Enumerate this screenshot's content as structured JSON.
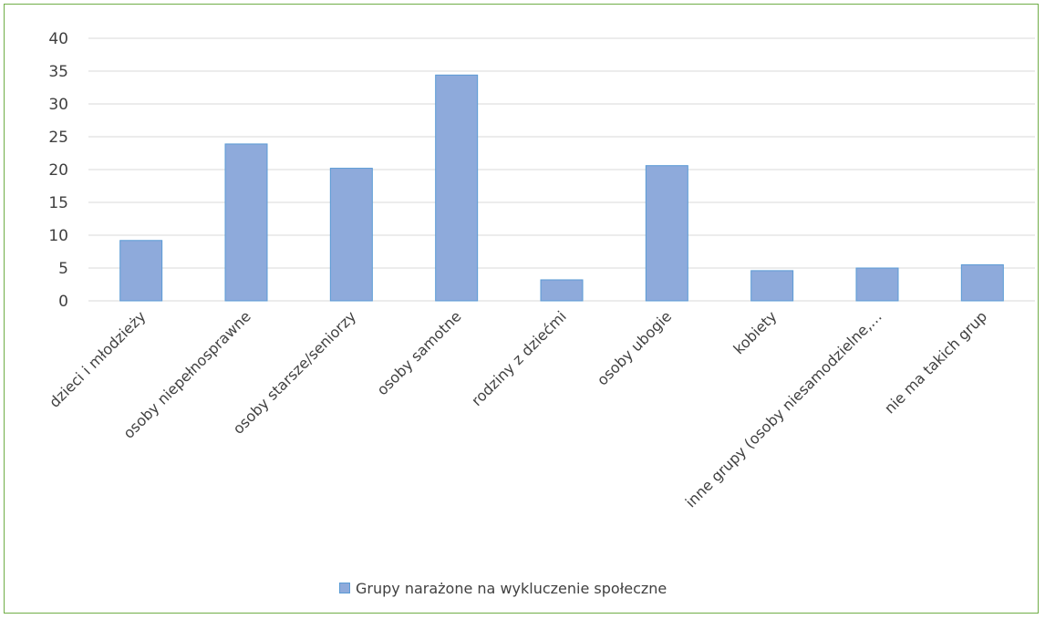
{
  "colors": {
    "bar_fill": "#8eaadb",
    "bar_stroke": "#5b9bd5",
    "grid": "#d9d9d9",
    "text": "#404040",
    "border": "#70ad47"
  },
  "chart_data": {
    "type": "bar",
    "title": "",
    "xlabel": "",
    "ylabel": "",
    "ylim": [
      0,
      40
    ],
    "yticks": [
      0,
      5,
      10,
      15,
      20,
      25,
      30,
      35,
      40
    ],
    "grid": true,
    "legend_position": "bottom",
    "categories": [
      "dzieci i młodzieży",
      "osoby niepełnosprawne",
      "osoby starsze/seniorzy",
      "osoby samotne",
      "rodziny z dziećmi",
      "osoby ubogie",
      "kobiety",
      "inne grupy (osoby niesamodzielne,…",
      "nie ma takich grup"
    ],
    "series": [
      {
        "name": "Grupy narażone na wykluczenie społeczne",
        "values": [
          9.2,
          23.9,
          20.2,
          34.4,
          3.2,
          20.6,
          4.6,
          5.0,
          5.5
        ]
      }
    ]
  }
}
